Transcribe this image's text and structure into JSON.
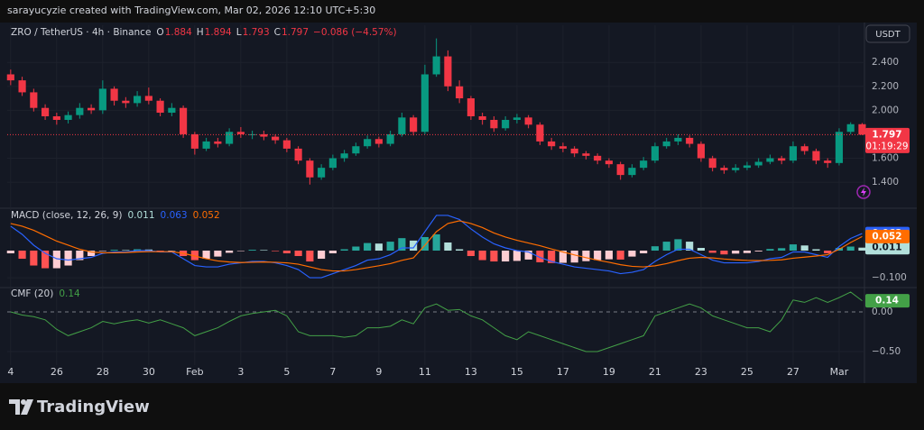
{
  "header": {
    "text": "sarayucyzie created with TradingView.com, Mar 02, 2026 12:10 UTC+5:30"
  },
  "footer": {
    "logo": "TradingView"
  },
  "chart_data": [
    {
      "type": "candlestick",
      "title": "ZRO / TetherUS · 4h · Binance",
      "legend_keys": [
        "O",
        "H",
        "L",
        "C"
      ],
      "change_label": "−0.086 (−4.57%)",
      "currency": "USDT",
      "countdown": "01:19:29",
      "up_color": "#089981",
      "down_color": "#f23645",
      "xlim": [
        -0.3,
        74.2
      ],
      "xticks": [
        {
          "value": 0,
          "label": "4"
        },
        {
          "value": 4,
          "label": "26"
        },
        {
          "value": 8,
          "label": "28"
        },
        {
          "value": 12,
          "label": "30"
        },
        {
          "value": 16,
          "label": "Feb"
        },
        {
          "value": 20,
          "label": "3"
        },
        {
          "value": 24,
          "label": "5"
        },
        {
          "value": 28,
          "label": "7"
        },
        {
          "value": 32,
          "label": "9"
        },
        {
          "value": 36,
          "label": "11"
        },
        {
          "value": 40,
          "label": "13"
        },
        {
          "value": 44,
          "label": "15"
        },
        {
          "value": 48,
          "label": "17"
        },
        {
          "value": 52,
          "label": "19"
        },
        {
          "value": 56,
          "label": "21"
        },
        {
          "value": 60,
          "label": "23"
        },
        {
          "value": 64,
          "label": "25"
        },
        {
          "value": 68,
          "label": "27"
        },
        {
          "value": 72,
          "label": "Mar"
        }
      ],
      "ylim": [
        1.19,
        2.71
      ],
      "yticks": [
        {
          "value": 1.4,
          "label": "1.400"
        },
        {
          "value": 1.6,
          "label": "1.600"
        },
        {
          "value": 2.0,
          "label": "2.000"
        },
        {
          "value": 2.2,
          "label": "2.200"
        },
        {
          "value": 2.4,
          "label": "2.400"
        }
      ],
      "grid": true,
      "open": [
        2.3,
        2.25,
        2.15,
        2.02,
        1.95,
        1.92,
        1.96,
        2.02,
        2.0,
        2.18,
        2.08,
        2.06,
        2.12,
        2.08,
        1.98,
        2.02,
        1.8,
        1.68,
        1.74,
        1.72,
        1.82,
        1.8,
        1.8,
        1.78,
        1.75,
        1.68,
        1.58,
        1.44,
        1.52,
        1.6,
        1.64,
        1.7,
        1.76,
        1.72,
        1.8,
        1.94,
        1.82,
        2.3,
        2.45,
        2.2,
        2.1,
        1.95,
        1.92,
        1.85,
        1.92,
        1.94,
        1.88,
        1.74,
        1.7,
        1.68,
        1.64,
        1.62,
        1.58,
        1.55,
        1.46,
        1.52,
        1.58,
        1.7,
        1.74,
        1.77,
        1.72,
        1.6,
        1.52,
        1.5,
        1.52,
        1.54,
        1.57,
        1.6,
        1.58,
        1.7,
        1.66,
        1.58,
        1.56,
        1.82,
        1.884
      ],
      "high": [
        2.34,
        2.28,
        2.18,
        2.05,
        1.98,
        1.99,
        2.06,
        2.05,
        2.25,
        2.2,
        2.11,
        2.16,
        2.19,
        2.1,
        2.06,
        2.04,
        1.82,
        1.77,
        1.77,
        1.85,
        1.86,
        1.83,
        1.83,
        1.8,
        1.77,
        1.7,
        1.6,
        1.55,
        1.63,
        1.67,
        1.73,
        1.79,
        1.78,
        1.83,
        1.98,
        1.96,
        2.38,
        2.6,
        2.5,
        2.25,
        2.12,
        1.98,
        1.95,
        1.95,
        1.97,
        1.96,
        1.9,
        1.77,
        1.73,
        1.7,
        1.66,
        1.64,
        1.6,
        1.57,
        1.55,
        1.61,
        1.73,
        1.77,
        1.8,
        1.79,
        1.74,
        1.62,
        1.54,
        1.55,
        1.57,
        1.6,
        1.63,
        1.62,
        1.74,
        1.72,
        1.68,
        1.6,
        1.85,
        1.9,
        1.894
      ],
      "low": [
        2.21,
        2.12,
        1.99,
        1.92,
        1.88,
        1.89,
        1.93,
        1.97,
        1.97,
        2.04,
        2.02,
        2.03,
        2.05,
        1.95,
        1.95,
        1.77,
        1.63,
        1.66,
        1.69,
        1.7,
        1.77,
        1.76,
        1.75,
        1.72,
        1.65,
        1.55,
        1.38,
        1.42,
        1.5,
        1.57,
        1.62,
        1.68,
        1.69,
        1.7,
        1.78,
        1.79,
        1.8,
        2.28,
        2.16,
        2.06,
        1.92,
        1.88,
        1.82,
        1.83,
        1.89,
        1.85,
        1.71,
        1.67,
        1.65,
        1.61,
        1.59,
        1.55,
        1.52,
        1.42,
        1.44,
        1.5,
        1.56,
        1.68,
        1.71,
        1.69,
        1.57,
        1.49,
        1.47,
        1.48,
        1.5,
        1.52,
        1.55,
        1.55,
        1.56,
        1.63,
        1.55,
        1.52,
        1.54,
        1.8,
        1.793
      ],
      "close": [
        2.25,
        2.15,
        2.02,
        1.95,
        1.92,
        1.96,
        2.02,
        2.0,
        2.18,
        2.08,
        2.06,
        2.12,
        2.08,
        1.98,
        2.02,
        1.8,
        1.68,
        1.74,
        1.72,
        1.82,
        1.8,
        1.8,
        1.78,
        1.75,
        1.68,
        1.58,
        1.44,
        1.52,
        1.6,
        1.64,
        1.7,
        1.76,
        1.72,
        1.8,
        1.94,
        1.82,
        2.3,
        2.45,
        2.2,
        2.1,
        1.95,
        1.92,
        1.85,
        1.92,
        1.94,
        1.88,
        1.74,
        1.7,
        1.68,
        1.64,
        1.62,
        1.58,
        1.55,
        1.46,
        1.52,
        1.58,
        1.7,
        1.74,
        1.77,
        1.72,
        1.6,
        1.52,
        1.5,
        1.52,
        1.54,
        1.57,
        1.6,
        1.58,
        1.7,
        1.66,
        1.58,
        1.56,
        1.82,
        1.884,
        1.797
      ]
    },
    {
      "type": "macd",
      "title": "MACD (close, 12, 26, 9)",
      "ylim": [
        -0.133,
        0.153
      ],
      "yticks": [
        {
          "value": -0.1,
          "label": "−0.100"
        }
      ],
      "hist_colors": [
        "#26a69a",
        "#b2dfdb",
        "#ffcdd2",
        "#ff5252"
      ],
      "histogram": [
        -0.01,
        -0.03,
        -0.055,
        -0.065,
        -0.065,
        -0.055,
        -0.035,
        -0.02,
        -0.002,
        0.003,
        0.002,
        0.005,
        0.004,
        -0.001,
        -0.001,
        -0.02,
        -0.035,
        -0.03,
        -0.022,
        -0.008,
        -0.001,
        0.003,
        0.002,
        -0.002,
        -0.01,
        -0.02,
        -0.04,
        -0.03,
        -0.01,
        0.005,
        0.015,
        0.028,
        0.026,
        0.033,
        0.046,
        0.037,
        0.05,
        0.06,
        0.03,
        0.005,
        -0.02,
        -0.035,
        -0.04,
        -0.04,
        -0.038,
        -0.033,
        -0.043,
        -0.046,
        -0.045,
        -0.044,
        -0.039,
        -0.035,
        -0.032,
        -0.033,
        -0.022,
        -0.01,
        0.016,
        0.033,
        0.042,
        0.033,
        0.01,
        -0.008,
        -0.014,
        -0.011,
        -0.009,
        -0.003,
        0.006,
        0.009,
        0.023,
        0.019,
        0.005,
        -0.01,
        0.01,
        0.015,
        0.011
      ],
      "series": [
        {
          "color": "#2962ff",
          "values": [
            0.09,
            0.06,
            0.02,
            -0.01,
            -0.03,
            -0.035,
            -0.03,
            -0.025,
            -0.01,
            -0.005,
            -0.005,
            0.0,
            0.0,
            -0.005,
            -0.005,
            -0.03,
            -0.055,
            -0.06,
            -0.06,
            -0.05,
            -0.045,
            -0.04,
            -0.04,
            -0.045,
            -0.055,
            -0.07,
            -0.1,
            -0.1,
            -0.085,
            -0.07,
            -0.055,
            -0.035,
            -0.03,
            -0.015,
            0.01,
            0.01,
            0.07,
            0.13,
            0.13,
            0.115,
            0.08,
            0.05,
            0.025,
            0.01,
            0.0,
            -0.005,
            -0.025,
            -0.04,
            -0.05,
            -0.06,
            -0.065,
            -0.07,
            -0.075,
            -0.085,
            -0.08,
            -0.07,
            -0.04,
            -0.015,
            0.005,
            0.005,
            -0.015,
            -0.035,
            -0.045,
            -0.045,
            -0.045,
            -0.04,
            -0.03,
            -0.025,
            -0.005,
            -0.005,
            -0.015,
            -0.025,
            0.015,
            0.045,
            0.063
          ]
        },
        {
          "color": "#ff6d00",
          "values": [
            0.1,
            0.09,
            0.075,
            0.055,
            0.035,
            0.02,
            0.005,
            -0.005,
            -0.008,
            -0.008,
            -0.007,
            -0.005,
            -0.004,
            -0.004,
            -0.004,
            -0.01,
            -0.02,
            -0.03,
            -0.038,
            -0.042,
            -0.044,
            -0.043,
            -0.042,
            -0.043,
            -0.045,
            -0.05,
            -0.06,
            -0.07,
            -0.075,
            -0.075,
            -0.07,
            -0.063,
            -0.056,
            -0.048,
            -0.036,
            -0.027,
            0.02,
            0.07,
            0.1,
            0.11,
            0.1,
            0.085,
            0.065,
            0.05,
            0.038,
            0.028,
            0.018,
            0.006,
            -0.005,
            -0.016,
            -0.026,
            -0.035,
            -0.043,
            -0.052,
            -0.058,
            -0.06,
            -0.056,
            -0.048,
            -0.037,
            -0.028,
            -0.025,
            -0.027,
            -0.031,
            -0.034,
            -0.036,
            -0.037,
            -0.036,
            -0.034,
            -0.028,
            -0.024,
            -0.02,
            -0.015,
            0.005,
            0.03,
            0.052
          ]
        }
      ]
    },
    {
      "type": "cmf",
      "title": "CMF (20)",
      "color": "#43a047",
      "zero_color": "#787b86",
      "ylim": [
        -0.67,
        0.295
      ],
      "yticks": [
        {
          "value": -0.5,
          "label": "−0.50"
        },
        {
          "value": 0,
          "label": "0.00"
        }
      ],
      "values": [
        0.0,
        -0.04,
        -0.06,
        -0.1,
        -0.22,
        -0.3,
        -0.25,
        -0.2,
        -0.12,
        -0.15,
        -0.12,
        -0.1,
        -0.14,
        -0.1,
        -0.15,
        -0.2,
        -0.3,
        -0.25,
        -0.2,
        -0.12,
        -0.05,
        -0.02,
        0.0,
        0.02,
        -0.05,
        -0.25,
        -0.3,
        -0.3,
        -0.3,
        -0.32,
        -0.3,
        -0.2,
        -0.2,
        -0.18,
        -0.1,
        -0.15,
        0.05,
        0.1,
        0.02,
        0.03,
        -0.05,
        -0.1,
        -0.2,
        -0.3,
        -0.35,
        -0.25,
        -0.3,
        -0.35,
        -0.4,
        -0.45,
        -0.5,
        -0.5,
        -0.45,
        -0.4,
        -0.35,
        -0.3,
        -0.05,
        0.0,
        0.05,
        0.1,
        0.05,
        -0.05,
        -0.1,
        -0.15,
        -0.2,
        -0.2,
        -0.25,
        -0.1,
        0.15,
        0.12,
        0.18,
        0.12,
        0.18,
        0.25,
        0.14
      ]
    }
  ]
}
